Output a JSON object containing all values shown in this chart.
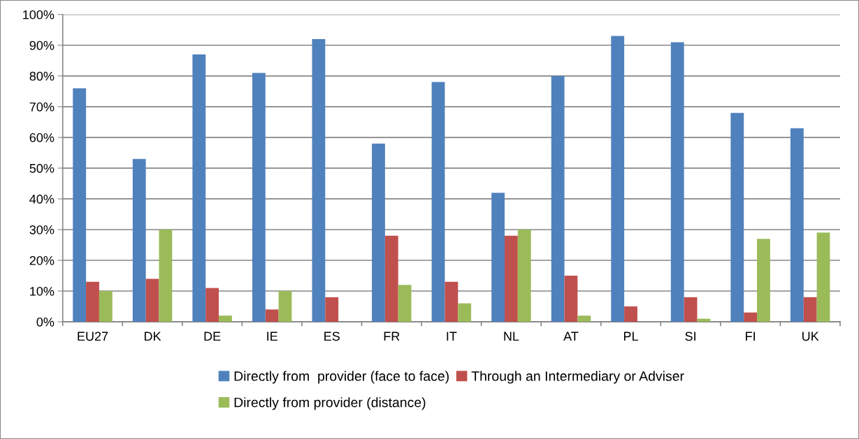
{
  "chart_data": {
    "type": "bar",
    "categories": [
      "EU27",
      "DK",
      "DE",
      "IE",
      "ES",
      "FR",
      "IT",
      "NL",
      "AT",
      "PL",
      "SI",
      "FI",
      "UK"
    ],
    "series": [
      {
        "name": "Directly from  provider (face to face)",
        "color": "#4f81bd",
        "values": [
          76,
          53,
          87,
          81,
          92,
          58,
          78,
          42,
          80,
          93,
          91,
          68,
          63
        ]
      },
      {
        "name": "Through an Intermediary or Adviser",
        "color": "#c0504d",
        "values": [
          13,
          14,
          11,
          4,
          8,
          28,
          13,
          28,
          15,
          5,
          8,
          3,
          8
        ]
      },
      {
        "name": "Directly from provider (distance)",
        "color": "#9bbb59",
        "values": [
          10,
          30,
          2,
          10,
          0,
          12,
          6,
          30,
          2,
          0,
          1,
          27,
          29
        ]
      }
    ],
    "ylim": [
      0,
      100
    ],
    "yticks": [
      {
        "value": 0,
        "label": "0%"
      },
      {
        "value": 10,
        "label": "10%"
      },
      {
        "value": 20,
        "label": "20%"
      },
      {
        "value": 30,
        "label": "30%"
      },
      {
        "value": 40,
        "label": "40%"
      },
      {
        "value": 50,
        "label": "50%"
      },
      {
        "value": 60,
        "label": "60%"
      },
      {
        "value": 70,
        "label": "70%"
      },
      {
        "value": 80,
        "label": "80%"
      },
      {
        "value": 90,
        "label": "90%"
      },
      {
        "value": 100,
        "label": "100%"
      }
    ],
    "grid": "y",
    "legend": "bottom"
  }
}
